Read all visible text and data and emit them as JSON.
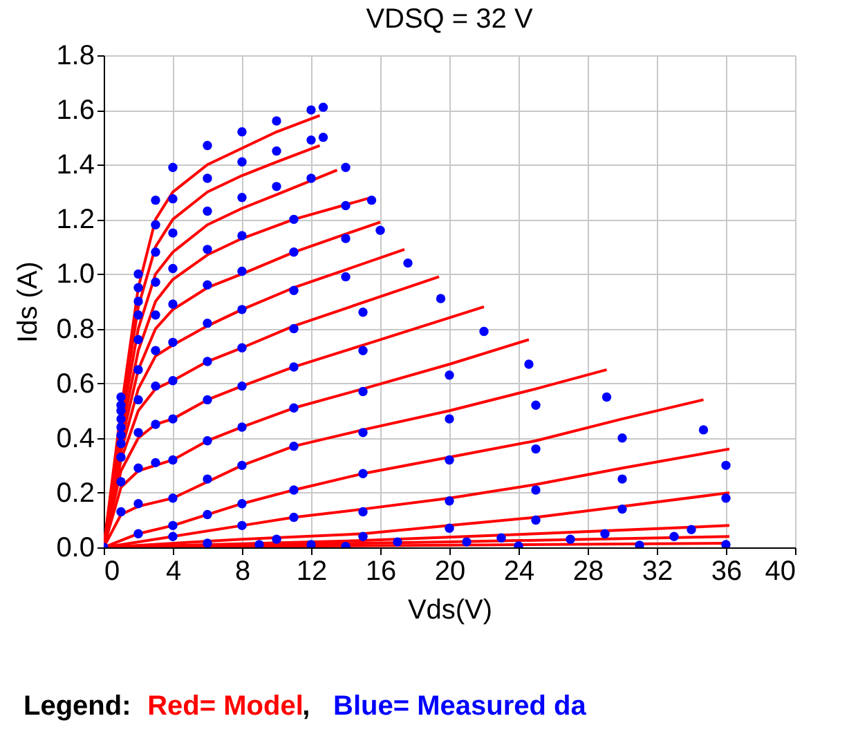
{
  "chart_data": {
    "type": "line",
    "title": "VDSQ = 32 V",
    "xlabel": "Vds(V)",
    "ylabel": "Ids (A)",
    "xlim": [
      0,
      40
    ],
    "xticks": [
      0,
      4,
      8,
      12,
      16,
      20,
      24,
      28,
      32,
      36,
      40
    ],
    "ylim": [
      0,
      1.8
    ],
    "yticks": [
      {
        "value": 0,
        "label": "0.0"
      },
      0.2,
      0.4,
      0.6,
      0.8,
      {
        "value": 1,
        "label": "1.0"
      },
      1.2,
      1.4,
      1.6,
      1.8
    ],
    "grid": true,
    "annotations": [
      "Legend: ",
      "Red= Model",
      ", ",
      "Blue= Measured da"
    ],
    "series": [
      {
        "color": "#ff0000",
        "x": [
          0,
          1,
          2,
          3,
          4,
          6,
          8,
          10,
          12.5
        ],
        "values": [
          0,
          0.5,
          0.95,
          1.2,
          1.3,
          1.4,
          1.46,
          1.52,
          1.58
        ]
      },
      {
        "color": "#ff0000",
        "x": [
          0,
          1,
          2,
          3,
          4,
          6,
          8,
          10,
          12.5
        ],
        "values": [
          0,
          0.47,
          0.88,
          1.1,
          1.2,
          1.3,
          1.36,
          1.41,
          1.47
        ]
      },
      {
        "color": "#ff0000",
        "x": [
          0,
          1,
          2,
          3,
          4,
          6,
          8,
          10,
          13.5
        ],
        "values": [
          0,
          0.44,
          0.8,
          1.0,
          1.08,
          1.18,
          1.24,
          1.29,
          1.38
        ]
      },
      {
        "color": "#ff0000",
        "x": [
          0,
          1,
          2,
          3,
          4,
          6,
          8,
          11,
          15.5
        ],
        "values": [
          0,
          0.41,
          0.72,
          0.9,
          0.98,
          1.07,
          1.13,
          1.2,
          1.28
        ]
      },
      {
        "color": "#ff0000",
        "x": [
          0,
          1,
          2,
          3,
          4,
          6,
          8,
          11,
          16
        ],
        "values": [
          0,
          0.38,
          0.65,
          0.8,
          0.87,
          0.95,
          1.0,
          1.08,
          1.19
        ]
      },
      {
        "color": "#ff0000",
        "x": [
          0,
          1,
          2,
          3,
          4,
          6,
          8,
          11,
          17.4
        ],
        "values": [
          0,
          0.35,
          0.58,
          0.7,
          0.74,
          0.81,
          0.87,
          0.95,
          1.09
        ]
      },
      {
        "color": "#ff0000",
        "x": [
          0,
          1,
          2,
          3,
          4,
          6,
          8,
          11,
          19.4
        ],
        "values": [
          0,
          0.32,
          0.5,
          0.58,
          0.61,
          0.68,
          0.73,
          0.81,
          0.99
        ]
      },
      {
        "color": "#ff0000",
        "x": [
          0,
          1,
          2,
          3,
          4,
          6,
          8,
          11,
          15,
          22
        ],
        "values": [
          0,
          0.28,
          0.4,
          0.45,
          0.47,
          0.54,
          0.59,
          0.66,
          0.74,
          0.88
        ]
      },
      {
        "color": "#ff0000",
        "x": [
          0,
          1,
          2,
          4,
          6,
          8,
          11,
          15,
          20,
          24.6
        ],
        "values": [
          0,
          0.22,
          0.28,
          0.32,
          0.39,
          0.44,
          0.51,
          0.58,
          0.67,
          0.76
        ]
      },
      {
        "color": "#ff0000",
        "x": [
          0,
          1,
          2,
          4,
          8,
          11,
          15,
          20,
          25,
          29.1
        ],
        "values": [
          0,
          0.12,
          0.15,
          0.18,
          0.3,
          0.37,
          0.43,
          0.5,
          0.58,
          0.65
        ]
      },
      {
        "color": "#ff0000",
        "x": [
          0,
          2,
          4,
          8,
          11,
          15,
          20,
          25,
          30,
          34.7
        ],
        "values": [
          0,
          0.05,
          0.08,
          0.16,
          0.21,
          0.27,
          0.33,
          0.39,
          0.47,
          0.54
        ]
      },
      {
        "color": "#ff0000",
        "x": [
          0,
          4,
          8,
          11,
          15,
          20,
          25,
          30,
          36.2
        ],
        "values": [
          0,
          0.04,
          0.08,
          0.11,
          0.14,
          0.18,
          0.23,
          0.29,
          0.36
        ]
      },
      {
        "color": "#ff0000",
        "x": [
          0,
          8,
          15,
          20,
          25,
          30,
          36.2
        ],
        "values": [
          0,
          0.03,
          0.05,
          0.08,
          0.11,
          0.15,
          0.2
        ]
      },
      {
        "color": "#ff0000",
        "x": [
          0,
          15,
          25,
          36.2
        ],
        "values": [
          0,
          0.025,
          0.05,
          0.08
        ]
      },
      {
        "color": "#ff0000",
        "x": [
          0,
          20,
          36.2
        ],
        "values": [
          0,
          0.02,
          0.04
        ]
      },
      {
        "color": "#ff0000",
        "x": [
          0,
          36.2
        ],
        "values": [
          0,
          0.015
        ]
      },
      {
        "type": "scatter",
        "color": "#0000ff",
        "x": [
          0,
          1,
          2,
          3,
          4,
          6,
          8,
          10,
          12,
          12.7
        ],
        "values": [
          0,
          0.55,
          1.0,
          1.27,
          1.39,
          1.47,
          1.52,
          1.56,
          1.6,
          1.61
        ]
      },
      {
        "type": "scatter",
        "color": "#0000ff",
        "x": [
          1,
          2,
          3,
          4,
          6,
          8,
          10,
          12,
          12.7
        ],
        "values": [
          0.52,
          0.95,
          1.18,
          1.275,
          1.35,
          1.41,
          1.45,
          1.49,
          1.5
        ]
      },
      {
        "type": "scatter",
        "color": "#0000ff",
        "x": [
          1,
          2,
          3,
          4,
          6,
          8,
          10,
          12,
          14
        ],
        "values": [
          0.5,
          0.9,
          1.08,
          1.15,
          1.23,
          1.28,
          1.32,
          1.35,
          1.39
        ]
      },
      {
        "type": "scatter",
        "color": "#0000ff",
        "x": [
          1,
          2,
          3,
          4,
          6,
          8,
          11,
          14,
          15.5
        ],
        "values": [
          0.47,
          0.85,
          0.97,
          1.02,
          1.09,
          1.14,
          1.2,
          1.25,
          1.27
        ]
      },
      {
        "type": "scatter",
        "color": "#0000ff",
        "x": [
          1,
          2,
          3,
          4,
          6,
          8,
          11,
          14,
          16
        ],
        "values": [
          0.44,
          0.76,
          0.85,
          0.89,
          0.96,
          1.01,
          1.08,
          1.13,
          1.16
        ]
      },
      {
        "type": "scatter",
        "color": "#0000ff",
        "x": [
          1,
          2,
          3,
          4,
          6,
          8,
          11,
          14,
          17.6
        ],
        "values": [
          0.41,
          0.65,
          0.72,
          0.75,
          0.82,
          0.87,
          0.94,
          0.99,
          1.04
        ]
      },
      {
        "type": "scatter",
        "color": "#0000ff",
        "x": [
          1,
          2,
          3,
          4,
          6,
          8,
          11,
          15,
          19.5
        ],
        "values": [
          0.38,
          0.54,
          0.59,
          0.61,
          0.68,
          0.73,
          0.8,
          0.86,
          0.91
        ]
      },
      {
        "type": "scatter",
        "color": "#0000ff",
        "x": [
          1,
          2,
          3,
          4,
          6,
          8,
          11,
          15,
          22
        ],
        "values": [
          0.33,
          0.42,
          0.45,
          0.47,
          0.54,
          0.59,
          0.66,
          0.72,
          0.79
        ]
      },
      {
        "type": "scatter",
        "color": "#0000ff",
        "x": [
          1,
          2,
          3,
          4,
          6,
          8,
          11,
          15,
          20,
          24.6
        ],
        "values": [
          0.24,
          0.29,
          0.31,
          0.32,
          0.39,
          0.44,
          0.51,
          0.57,
          0.63,
          0.67
        ]
      },
      {
        "type": "scatter",
        "color": "#0000ff",
        "x": [
          1,
          2,
          4,
          6,
          8,
          11,
          15,
          20,
          25,
          29.1
        ],
        "values": [
          0.13,
          0.16,
          0.18,
          0.25,
          0.3,
          0.37,
          0.42,
          0.47,
          0.52,
          0.55
        ]
      },
      {
        "type": "scatter",
        "color": "#0000ff",
        "x": [
          2,
          4,
          6,
          8,
          11,
          15,
          20,
          25,
          30,
          34.7
        ],
        "values": [
          0.05,
          0.08,
          0.12,
          0.16,
          0.21,
          0.27,
          0.32,
          0.36,
          0.4,
          0.43
        ]
      },
      {
        "type": "scatter",
        "color": "#0000ff",
        "x": [
          4,
          8,
          11,
          15,
          20,
          25,
          30,
          36
        ],
        "values": [
          0.04,
          0.08,
          0.11,
          0.13,
          0.17,
          0.21,
          0.25,
          0.3
        ]
      },
      {
        "type": "scatter",
        "color": "#0000ff",
        "x": [
          6,
          10,
          15,
          20,
          25,
          30,
          36
        ],
        "values": [
          0.015,
          0.03,
          0.04,
          0.07,
          0.1,
          0.14,
          0.18
        ]
      },
      {
        "type": "scatter",
        "color": "#0000ff",
        "x": [
          9,
          17,
          23,
          29,
          34
        ],
        "values": [
          0.01,
          0.02,
          0.035,
          0.05,
          0.065
        ]
      },
      {
        "type": "scatter",
        "color": "#0000ff",
        "x": [
          12,
          21,
          27,
          33
        ],
        "values": [
          0.01,
          0.02,
          0.03,
          0.04
        ]
      },
      {
        "type": "scatter",
        "color": "#0000ff",
        "x": [
          14,
          24,
          31,
          36
        ],
        "values": [
          0.003,
          0.005,
          0.008,
          0.01
        ]
      }
    ]
  }
}
